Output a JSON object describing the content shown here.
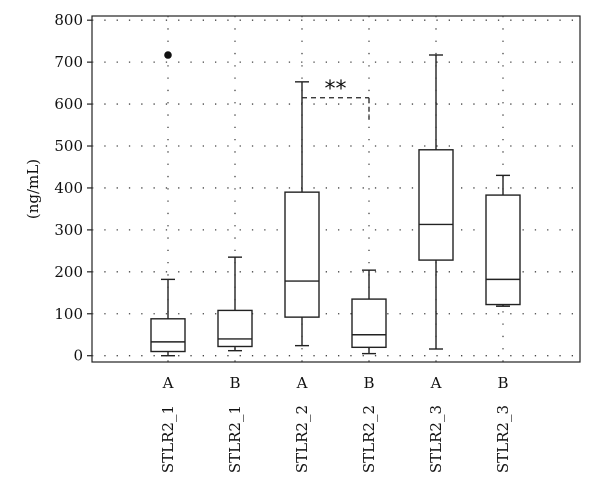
{
  "chart_data": {
    "type": "box",
    "ylabel": "(ng/mL)",
    "xlabel": "",
    "ylim": [
      -15,
      810
    ],
    "yticks": [
      0,
      100,
      200,
      300,
      400,
      500,
      600,
      700,
      800
    ],
    "grid": true,
    "categories": [
      {
        "group": "A",
        "name": "STLR2_1"
      },
      {
        "group": "B",
        "name": "STLR2_1"
      },
      {
        "group": "A",
        "name": "STLR2_2"
      },
      {
        "group": "B",
        "name": "STLR2_2"
      },
      {
        "group": "A",
        "name": "STLR2_3"
      },
      {
        "group": "B",
        "name": "STLR2_3"
      }
    ],
    "boxes": [
      {
        "min": 0,
        "q1": 10,
        "median": 33,
        "q3": 88,
        "max": 182,
        "outliers": [
          717
        ]
      },
      {
        "min": 12,
        "q1": 22,
        "median": 40,
        "q3": 108,
        "max": 235,
        "outliers": []
      },
      {
        "min": 24,
        "q1": 92,
        "median": 178,
        "q3": 390,
        "max": 653,
        "outliers": []
      },
      {
        "min": 5,
        "q1": 20,
        "median": 50,
        "q3": 135,
        "max": 204,
        "outliers": []
      },
      {
        "min": 16,
        "q1": 228,
        "median": 313,
        "q3": 491,
        "max": 717,
        "outliers": []
      },
      {
        "min": 118,
        "q1": 122,
        "median": 182,
        "q3": 383,
        "max": 430,
        "outliers": []
      }
    ],
    "annotations": [
      {
        "text": "**",
        "from": 2,
        "to": 3,
        "y": 615
      }
    ]
  }
}
